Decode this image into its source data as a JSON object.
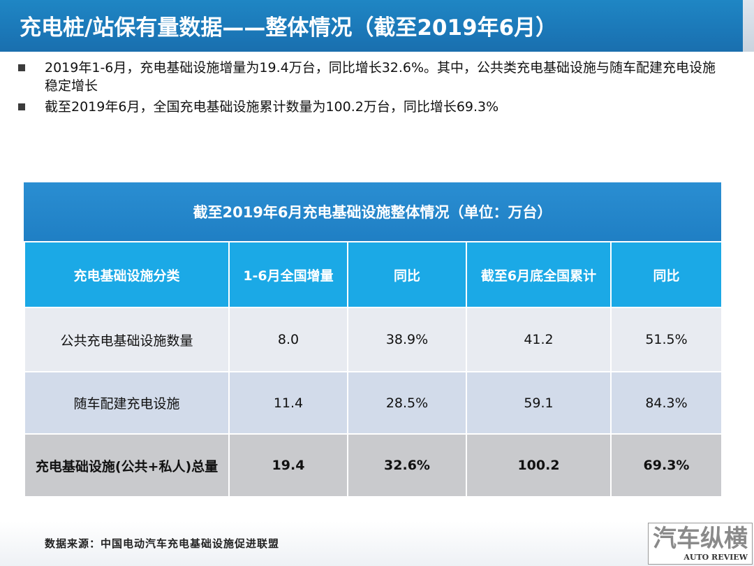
{
  "header": {
    "title": "充电桩/站保有量数据——整体情况（截至2019年6月）"
  },
  "bullets": [
    "2019年1-6月，充电基础设施增量为19.4万台，同比增长32.6%。其中，公共类充电基础设施与随车配建充电设施稳定增长",
    "截至2019年6月，全国充电基础设施累计数量为100.2万台，同比增长69.3%"
  ],
  "table": {
    "title": "截至2019年6月充电基础设施整体情况（单位：万台）",
    "headers": [
      "充电基础设施分类",
      "1-6月全国增量",
      "同比",
      "截至6月底全国累计",
      "同比"
    ],
    "rows": [
      [
        "公共充电基础设施数量",
        "8.0",
        "38.9%",
        "41.2",
        "51.5%"
      ],
      [
        "随车配建充电设施",
        "11.4",
        "28.5%",
        "59.1",
        "84.3%"
      ],
      [
        "充电基础设施(公共+私人)总量",
        "19.4",
        "32.6%",
        "100.2",
        "69.3%"
      ]
    ]
  },
  "footer": {
    "source": "数据来源：中国电动汽车充电基础设施促进联盟",
    "logo_main": "汽车纵横",
    "logo_sub": "AUTO REVIEW"
  }
}
